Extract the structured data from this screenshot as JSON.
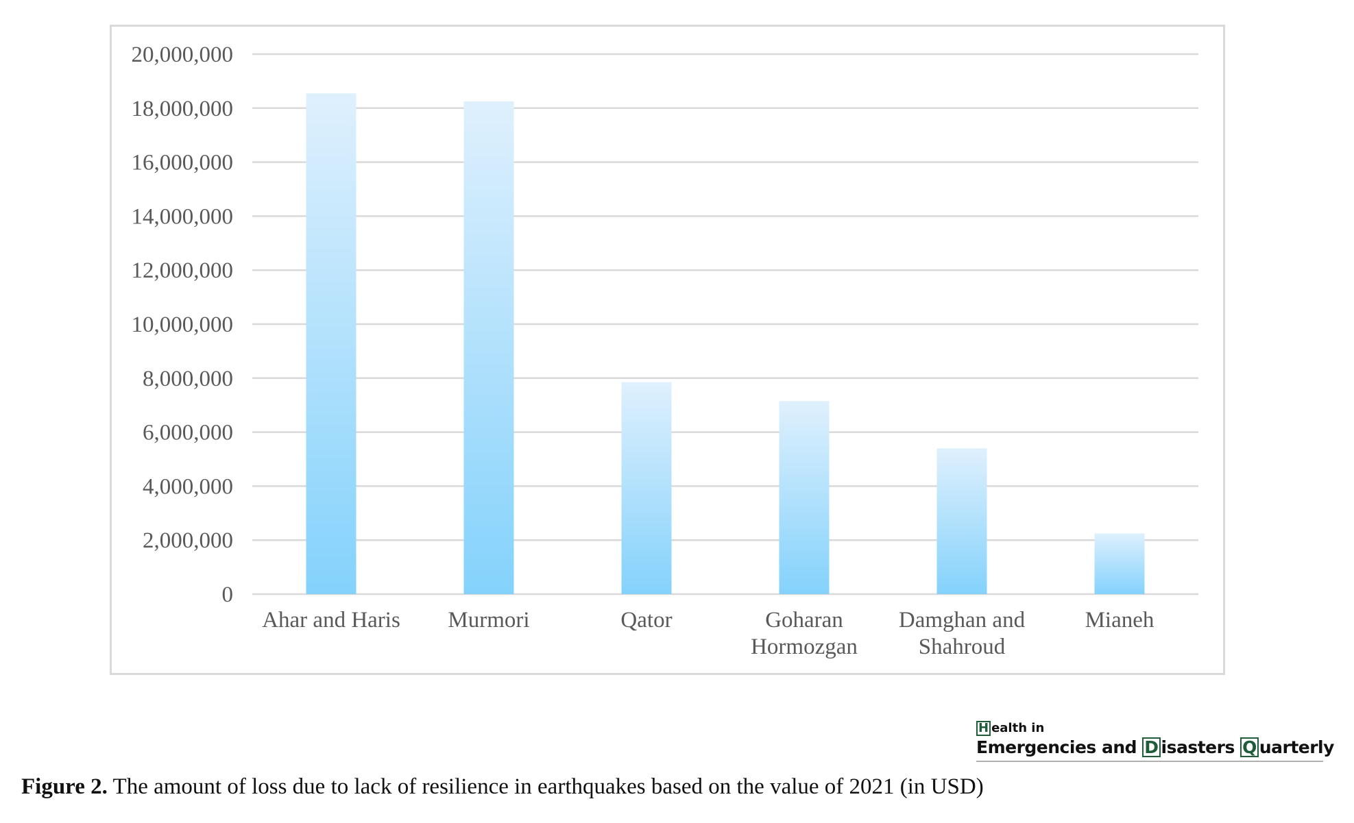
{
  "chart_data": {
    "type": "bar",
    "title": "",
    "xlabel": "",
    "ylabel": "",
    "categories": [
      [
        "Ahar and Haris"
      ],
      [
        "Murmori"
      ],
      [
        "Qator"
      ],
      [
        "Goharan",
        "Hormozgan"
      ],
      [
        "Damghan and",
        "Shahroud"
      ],
      [
        "Mianeh"
      ]
    ],
    "values": [
      18550000,
      18250000,
      7850000,
      7150000,
      5400000,
      2250000
    ],
    "ylim": [
      0,
      20000000
    ],
    "yticks": [
      0,
      2000000,
      4000000,
      6000000,
      8000000,
      10000000,
      12000000,
      14000000,
      16000000,
      18000000,
      20000000
    ],
    "ytick_labels": [
      "0",
      "2,000,000",
      "4,000,000",
      "6,000,000",
      "8,000,000",
      "10,000,000",
      "12,000,000",
      "14,000,000",
      "16,000,000",
      "18,000,000",
      "20,000,000"
    ],
    "grid": true,
    "legend": "none",
    "bar_color_top": "#dff0fd",
    "bar_color_bottom": "#84d2fc",
    "gridline_color": "#d9d9d9",
    "tick_label_color": "#595959"
  },
  "logo": {
    "line1_cap": "H",
    "line1_rest": "ealth in",
    "line2_part1": "Emergencies and ",
    "line2_cap2": "D",
    "line2_part2": "isasters ",
    "line2_cap3": "Q",
    "line2_part3": "uarterly",
    "accent_color": "#1e5c3a"
  },
  "caption": {
    "label": "Figure 2.",
    "text": " The amount of loss due to lack of resilience in earthquakes based on the value of 2021 (in USD)"
  }
}
